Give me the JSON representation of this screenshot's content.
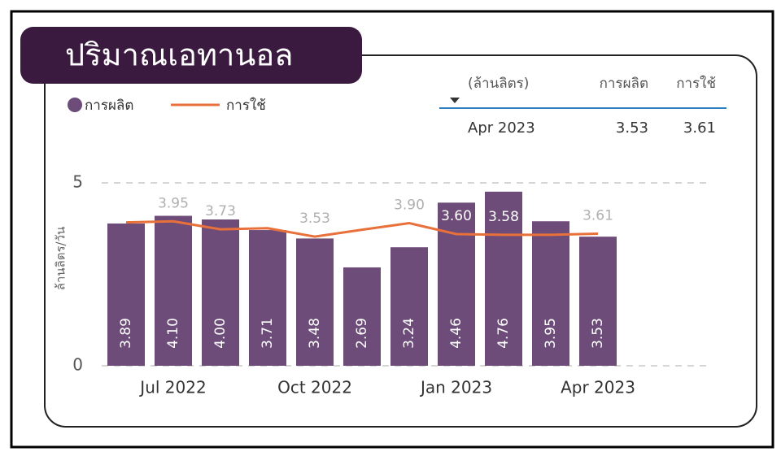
{
  "chart_data": {
    "type": "bar-line",
    "title": "ปริมาณเอทานอล",
    "y_label": "ล้านลิตร/วัน",
    "categories": [
      null,
      "Jul 2022",
      null,
      null,
      "Oct 2022",
      null,
      null,
      "Jan 2023",
      null,
      null,
      "Apr 2023"
    ],
    "series": [
      {
        "name": "การผลิต",
        "type": "bar",
        "color": "#6d4c7a",
        "values": [
          3.89,
          4.1,
          4.0,
          3.71,
          3.48,
          2.69,
          3.24,
          4.46,
          4.76,
          3.95,
          3.53
        ],
        "value_labels": [
          "3.89",
          "4.10",
          "4.00",
          "3.71",
          "3.48",
          "2.69",
          "3.24",
          "4.46",
          "4.76",
          "3.95",
          "3.53"
        ]
      },
      {
        "name": "การใช้",
        "type": "line",
        "color": "#e8703a",
        "values": [
          3.92,
          3.95,
          3.73,
          3.76,
          3.53,
          3.72,
          3.9,
          3.6,
          3.58,
          3.58,
          3.61
        ],
        "value_labels": [
          null,
          "3.95",
          "3.73",
          null,
          "3.53",
          null,
          "3.90",
          "3.60",
          "3.58",
          null,
          "3.61"
        ]
      }
    ],
    "ylim": [
      0,
      5
    ],
    "yticks": [
      0,
      5
    ],
    "grid": true,
    "table": {
      "header": [
        "(ล้านลิตร)",
        "การผลิต",
        "การใช้"
      ],
      "rows": [
        [
          "Apr 2023",
          "3.53",
          "3.61"
        ]
      ]
    }
  }
}
